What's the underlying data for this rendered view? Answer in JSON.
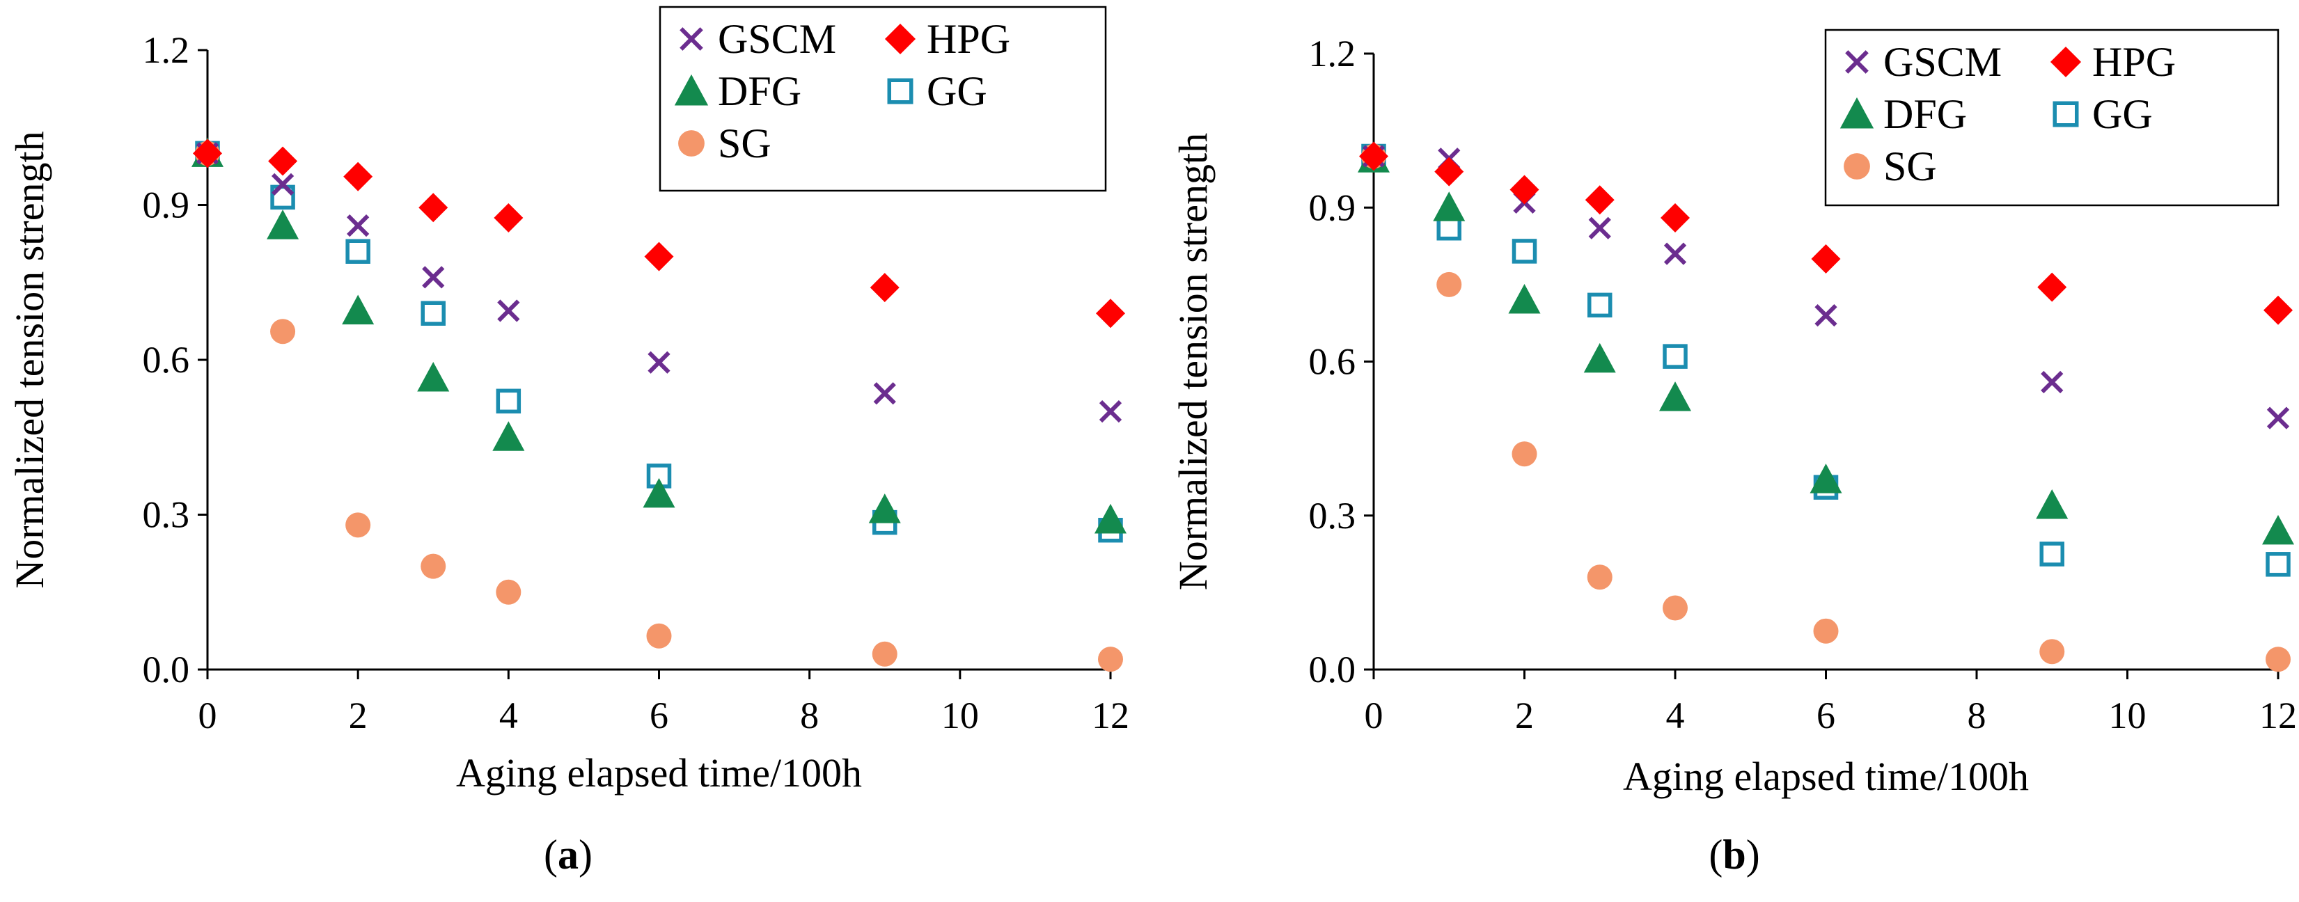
{
  "figure": {
    "panel_labels": [
      {
        "open": "(",
        "letter": "a",
        "close": ")"
      },
      {
        "open": "(",
        "letter": "b",
        "close": ")"
      }
    ]
  },
  "colors": {
    "GSCM": "#6b2d8f",
    "HPG": "#ff0000",
    "DFG": "#138a4e",
    "GG": "#1b8db0",
    "SG": "#f4966a"
  },
  "markers": {
    "GSCM": "x-cross",
    "HPG": "diamond-filled",
    "DFG": "triangle-filled",
    "GG": "square-open",
    "SG": "circle-filled"
  },
  "chart_data": [
    {
      "type": "scatter",
      "title": "",
      "xlabel": "Aging elapsed time/100h",
      "ylabel": "Normalized tension strength",
      "xlim": [
        0,
        12
      ],
      "ylim": [
        0,
        1.2
      ],
      "xticks": [
        "0",
        "2",
        "4",
        "6",
        "8",
        "10",
        "12"
      ],
      "yticks": [
        "0.0",
        "0.3",
        "0.6",
        "0.9",
        "1.2"
      ],
      "grid": false,
      "legend_position": "top-right",
      "x": [
        0,
        1,
        2,
        3,
        4,
        6,
        9,
        12
      ],
      "series": [
        {
          "name": "GSCM",
          "values": [
            1.0,
            0.94,
            0.86,
            0.76,
            0.695,
            0.595,
            0.535,
            0.5
          ]
        },
        {
          "name": "HPG",
          "values": [
            1.0,
            0.985,
            0.955,
            0.895,
            0.875,
            0.8,
            0.74,
            0.69
          ]
        },
        {
          "name": "DFG",
          "values": [
            1.0,
            0.86,
            0.695,
            0.565,
            0.45,
            0.34,
            0.31,
            0.29
          ]
        },
        {
          "name": "GG",
          "values": [
            1.0,
            0.915,
            0.81,
            0.69,
            0.52,
            0.375,
            0.285,
            0.27
          ]
        },
        {
          "name": "SG",
          "values": [
            1.0,
            0.655,
            0.28,
            0.2,
            0.15,
            0.065,
            0.03,
            0.02
          ]
        }
      ]
    },
    {
      "type": "scatter",
      "title": "",
      "xlabel": "Aging elapsed time/100h",
      "ylabel": "Normalized tension strength",
      "xlim": [
        0,
        12
      ],
      "ylim": [
        0,
        1.2
      ],
      "xticks": [
        "0",
        "2",
        "4",
        "6",
        "8",
        "10",
        "12"
      ],
      "yticks": [
        "0.0",
        "0.3",
        "0.6",
        "0.9",
        "1.2"
      ],
      "grid": false,
      "legend_position": "top-right",
      "x": [
        0,
        1,
        2,
        3,
        4,
        6,
        9,
        12
      ],
      "series": [
        {
          "name": "GSCM",
          "values": [
            1.0,
            0.995,
            0.91,
            0.86,
            0.81,
            0.69,
            0.56,
            0.49
          ]
        },
        {
          "name": "HPG",
          "values": [
            1.0,
            0.97,
            0.935,
            0.915,
            0.88,
            0.8,
            0.745,
            0.7
          ]
        },
        {
          "name": "DFG",
          "values": [
            0.995,
            0.9,
            0.72,
            0.605,
            0.53,
            0.37,
            0.32,
            0.27
          ]
        },
        {
          "name": "GG",
          "values": [
            1.0,
            0.86,
            0.815,
            0.71,
            0.61,
            0.355,
            0.225,
            0.205
          ]
        },
        {
          "name": "SG",
          "values": [
            1.0,
            0.75,
            0.42,
            0.18,
            0.12,
            0.075,
            0.035,
            0.02
          ]
        }
      ]
    }
  ]
}
